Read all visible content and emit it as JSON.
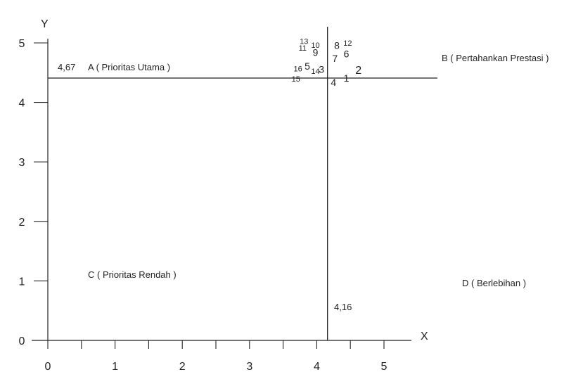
{
  "chart_data": {
    "type": "scatter",
    "title": "",
    "xlabel": "X",
    "ylabel": "Y",
    "xlim": [
      0,
      5.5
    ],
    "ylim": [
      0,
      5.2
    ],
    "x_ticks": [
      "0",
      "1",
      "2",
      "3",
      "4",
      "5"
    ],
    "y_ticks": [
      "0",
      "1",
      "2",
      "3",
      "4",
      "5"
    ],
    "grid": false,
    "divider_x": 4.16,
    "divider_y": 4.67,
    "divider_x_label": "4,16",
    "divider_y_label": "4,67",
    "quadrants": {
      "A": "A ( Prioritas Utama )",
      "B": "B ( Pertahankan Prestasi )",
      "C": "C ( Prioritas Rendah )",
      "D": "D ( Berlebihan )"
    },
    "points": [
      {
        "label": "1",
        "x": 4.44,
        "y": 4.35
      },
      {
        "label": "2",
        "x": 4.62,
        "y": 4.48
      },
      {
        "label": "3",
        "x": 4.07,
        "y": 4.5
      },
      {
        "label": "4",
        "x": 4.25,
        "y": 4.28
      },
      {
        "label": "5",
        "x": 3.86,
        "y": 4.55
      },
      {
        "label": "6",
        "x": 4.44,
        "y": 4.76
      },
      {
        "label": "7",
        "x": 4.27,
        "y": 4.68
      },
      {
        "label": "8",
        "x": 4.3,
        "y": 4.9
      },
      {
        "label": "9",
        "x": 3.98,
        "y": 4.78
      },
      {
        "label": "10",
        "x": 3.98,
        "y": 4.92
      },
      {
        "label": "11",
        "x": 3.79,
        "y": 4.87
      },
      {
        "label": "12",
        "x": 4.46,
        "y": 4.95
      },
      {
        "label": "13",
        "x": 3.81,
        "y": 4.98
      },
      {
        "label": "14",
        "x": 3.98,
        "y": 4.48
      },
      {
        "label": "15",
        "x": 3.69,
        "y": 4.35
      },
      {
        "label": "16",
        "x": 3.72,
        "y": 4.52
      }
    ]
  }
}
